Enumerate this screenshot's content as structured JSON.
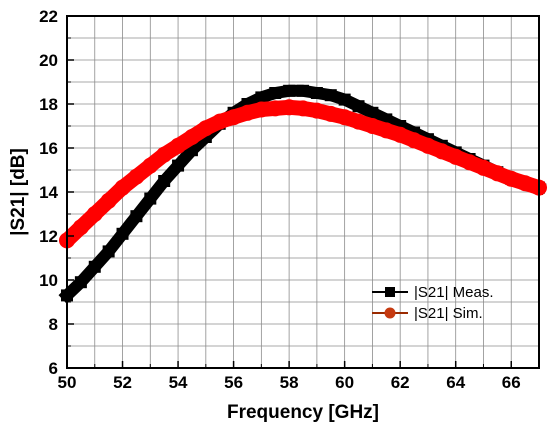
{
  "chart_data": {
    "type": "line",
    "title": "",
    "xlabel": "Frequency [GHz]",
    "ylabel": "|S21| [dB]",
    "xlim": [
      50,
      67
    ],
    "ylim": [
      6,
      22
    ],
    "xticks": [
      50,
      52,
      54,
      56,
      58,
      60,
      62,
      64,
      66
    ],
    "yticks": [
      6,
      8,
      10,
      12,
      14,
      16,
      18,
      20,
      22
    ],
    "xtick_labels": [
      "50",
      "52",
      "54",
      "56",
      "58",
      "60",
      "62",
      "64",
      "66"
    ],
    "ytick_labels": [
      "6",
      "8",
      "10",
      "12",
      "14",
      "16",
      "18",
      "20",
      "22"
    ],
    "grid": true,
    "legend_position": "bottom-right",
    "series": [
      {
        "name": "|S21| Meas.",
        "color": "#000000",
        "marker": "square",
        "x": [
          50,
          50.5,
          51,
          51.5,
          52,
          52.5,
          53,
          53.5,
          54,
          54.5,
          55,
          55.5,
          56,
          56.5,
          57,
          57.5,
          58,
          58.5,
          59,
          59.5,
          60,
          60.5,
          61,
          61.5,
          62,
          62.5,
          63,
          63.5,
          64,
          64.5,
          65,
          65.5,
          66,
          66.5,
          67
        ],
        "y": [
          9.3,
          9.9,
          10.6,
          11.3,
          12.1,
          12.9,
          13.7,
          14.5,
          15.2,
          15.9,
          16.5,
          17.1,
          17.6,
          18.0,
          18.3,
          18.5,
          18.6,
          18.6,
          18.5,
          18.4,
          18.2,
          17.9,
          17.6,
          17.3,
          17.0,
          16.7,
          16.4,
          16.1,
          15.8,
          15.5,
          15.2,
          14.9,
          14.6,
          14.4,
          14.2
        ]
      },
      {
        "name": "|S21| Sim.",
        "color": "#ff0000",
        "marker": "circle",
        "x": [
          50,
          50.5,
          51,
          51.5,
          52,
          52.5,
          53,
          53.5,
          54,
          54.5,
          55,
          55.5,
          56,
          56.5,
          57,
          57.5,
          58,
          58.5,
          59,
          59.5,
          60,
          60.5,
          61,
          61.5,
          62,
          62.5,
          63,
          63.5,
          64,
          64.5,
          65,
          65.5,
          66,
          66.5,
          67
        ],
        "y": [
          11.8,
          12.4,
          13.0,
          13.6,
          14.2,
          14.7,
          15.2,
          15.7,
          16.1,
          16.5,
          16.9,
          17.2,
          17.4,
          17.6,
          17.75,
          17.8,
          17.85,
          17.8,
          17.7,
          17.55,
          17.4,
          17.2,
          17.0,
          16.8,
          16.6,
          16.35,
          16.1,
          15.85,
          15.6,
          15.35,
          15.1,
          14.85,
          14.6,
          14.4,
          14.2
        ]
      }
    ]
  }
}
